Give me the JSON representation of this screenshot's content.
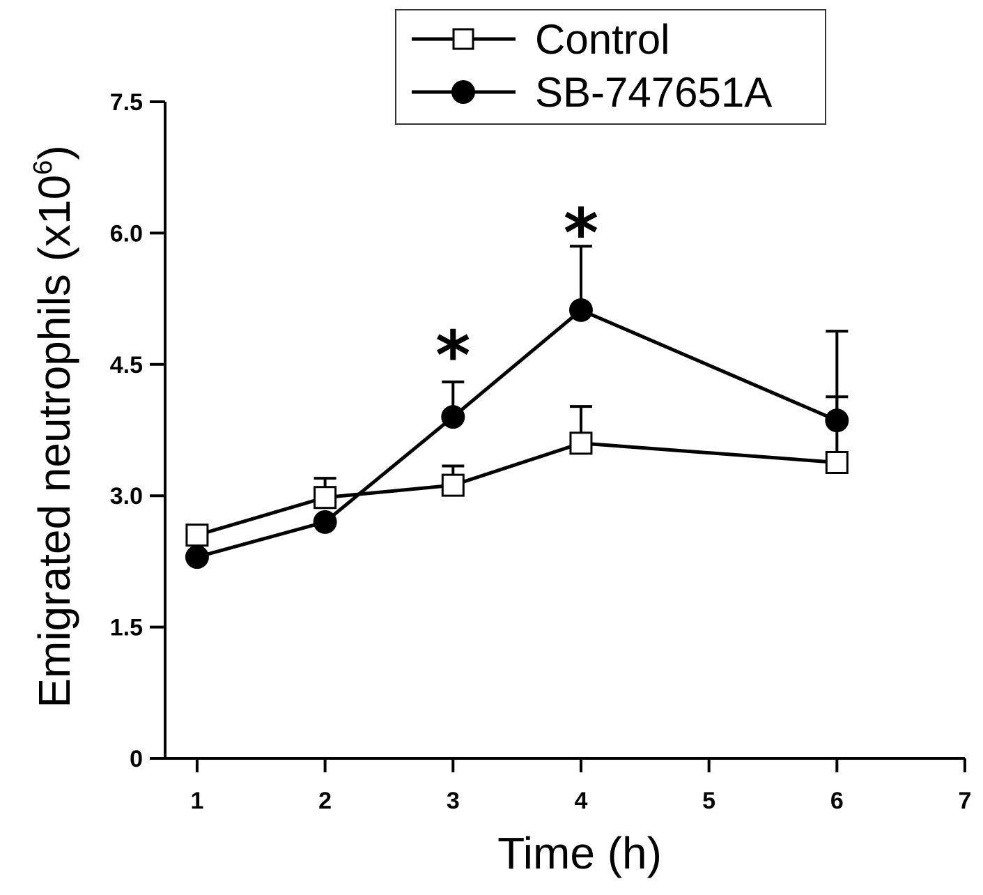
{
  "chart_data": {
    "type": "line",
    "title": "",
    "xlabel": "Time (h)",
    "ylabel": "Emigrated neutrophils (x10",
    "ylabel_superscript": "6",
    "ylabel_close": ")",
    "xlim": [
      0.75,
      7
    ],
    "ylim": [
      0,
      7.5
    ],
    "xticks": [
      1,
      2,
      3,
      4,
      5,
      6,
      7
    ],
    "xtick_labels": [
      "1",
      "2",
      "3",
      "4",
      "5",
      "6",
      "7"
    ],
    "yticks": [
      0,
      1.5,
      3.0,
      4.5,
      6.0,
      7.5
    ],
    "ytick_labels": [
      "0",
      "1.5",
      "3.0",
      "4.5",
      "6.0",
      "7.5"
    ],
    "grid": false,
    "legend_position": "top-right",
    "series": [
      {
        "name": "Control",
        "marker": "open-square",
        "x": [
          1,
          2,
          3,
          4,
          6
        ],
        "values": [
          2.55,
          2.98,
          3.12,
          3.6,
          3.38
        ],
        "error_upper": [
          0.07,
          0.22,
          0.22,
          0.42,
          0.75
        ]
      },
      {
        "name": "SB-747651A",
        "marker": "filled-circle",
        "x": [
          1,
          2,
          3,
          4,
          6
        ],
        "values": [
          2.3,
          2.7,
          3.9,
          5.12,
          3.86
        ],
        "error_upper": [
          0.0,
          0.0,
          0.4,
          0.73,
          1.02
        ]
      }
    ],
    "annotations": [
      {
        "text": "*",
        "x": 3,
        "y": 4.7
      },
      {
        "text": "*",
        "x": 4,
        "y": 6.1
      }
    ]
  }
}
